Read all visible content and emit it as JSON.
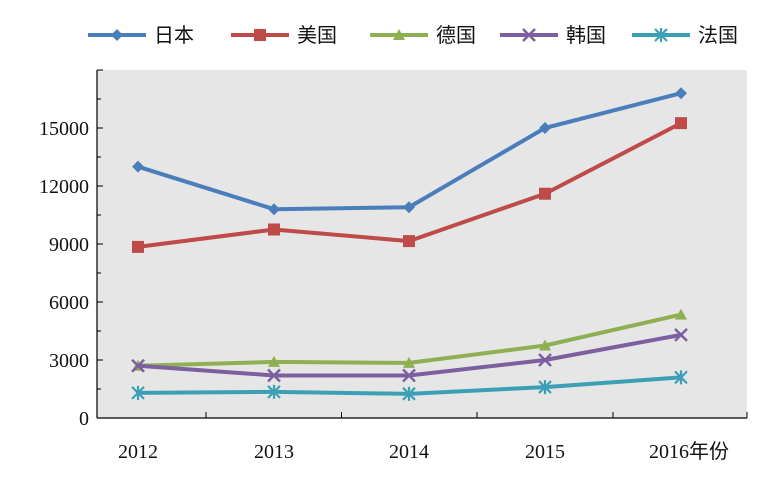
{
  "chart_data": {
    "type": "line",
    "categories": [
      "2012",
      "2013",
      "2014",
      "2015",
      "2016年份"
    ],
    "ylim": [
      0,
      18000
    ],
    "yticks": [
      0,
      3000,
      6000,
      9000,
      12000,
      15000
    ],
    "grid": false,
    "legend_position": "top",
    "series": [
      {
        "name": "日本",
        "values": [
          13000,
          10800,
          10900,
          15000,
          16800
        ],
        "color": "#4a7ebb",
        "marker": "diamond"
      },
      {
        "name": "美国",
        "values": [
          8850,
          9750,
          9150,
          11600,
          15250
        ],
        "color": "#be4b48",
        "marker": "square"
      },
      {
        "name": "德国",
        "values": [
          2700,
          2900,
          2850,
          3750,
          5350
        ],
        "color": "#8fb052",
        "marker": "triangle"
      },
      {
        "name": "韩国",
        "values": [
          2700,
          2200,
          2200,
          3000,
          4300
        ],
        "color": "#7d5fa0",
        "marker": "x"
      },
      {
        "name": "法国",
        "values": [
          1300,
          1350,
          1250,
          1600,
          2100
        ],
        "color": "#3ca0b4",
        "marker": "asterisk"
      }
    ],
    "plot_background": "#e6e6e6"
  }
}
